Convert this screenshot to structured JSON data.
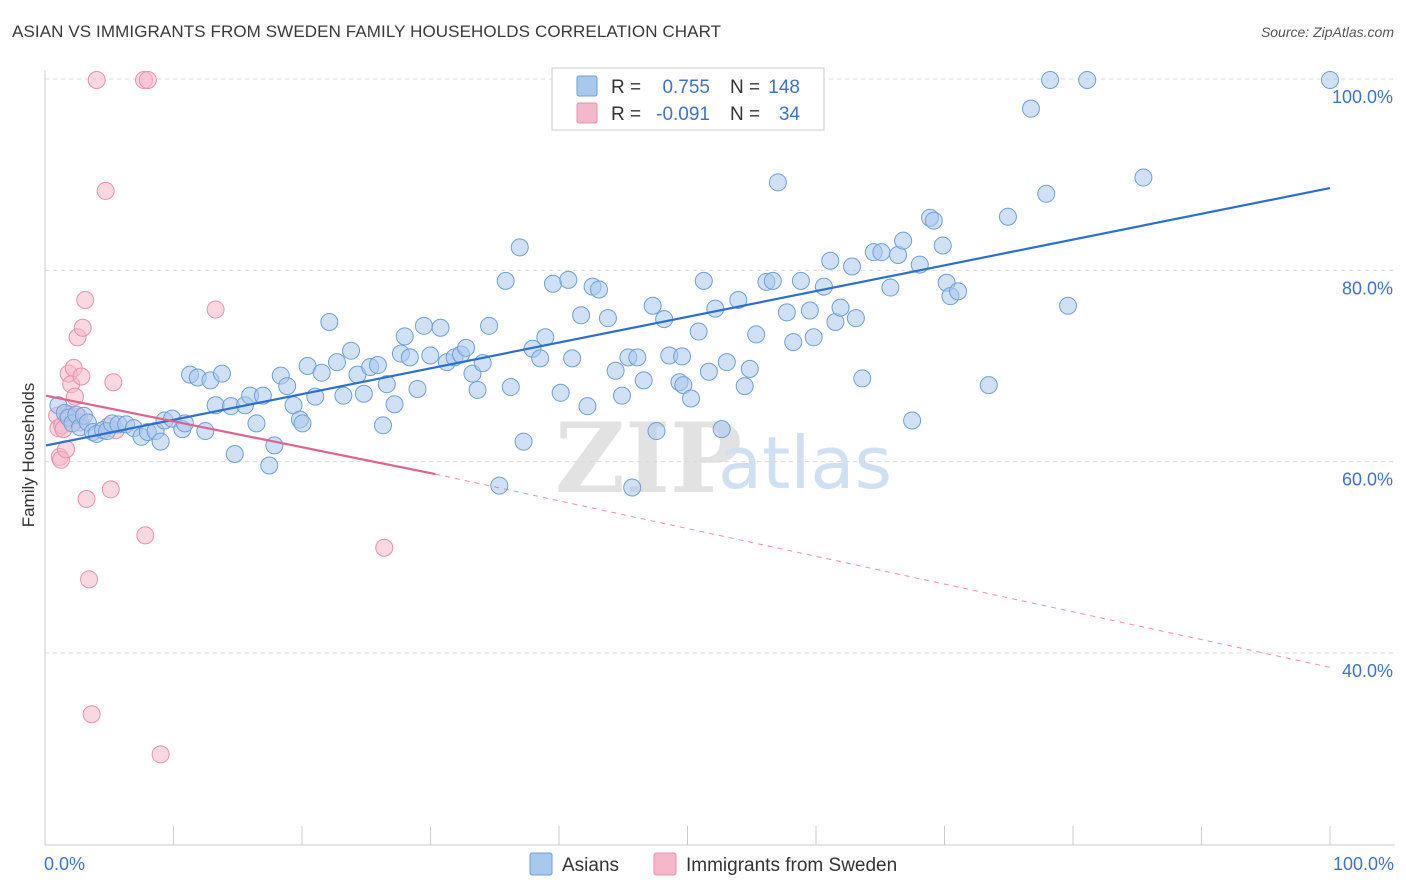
{
  "title": "ASIAN VS IMMIGRANTS FROM SWEDEN FAMILY HOUSEHOLDS CORRELATION CHART",
  "source": "Source: ZipAtlas.com",
  "watermark": {
    "zip": "ZIP",
    "atlas": "atlas"
  },
  "colors": {
    "asian_fill": "#a9c8ee",
    "asian_stroke": "#6f9fd8",
    "asian_line": "#2c6fce",
    "sweden_fill": "#f5b8cb",
    "sweden_stroke": "#e891ad",
    "sweden_line": "#e0628f",
    "tick_text": "#3f73c9",
    "grid": "#d9d9d9"
  },
  "legend": {
    "rows": [
      {
        "r_label": "R =",
        "r_value": "0.755",
        "n_label": "N =",
        "n_value": "148"
      },
      {
        "r_label": "R =",
        "r_value": "-0.091",
        "n_label": "N =",
        "n_value": "34"
      }
    ]
  },
  "bottom_legend": [
    "Asians",
    "Immigrants from Sweden"
  ],
  "chart_data": {
    "type": "scatter",
    "title": "ASIAN VS IMMIGRANTS FROM SWEDEN FAMILY HOUSEHOLDS CORRELATION CHART",
    "xlabel": "",
    "ylabel": "Family Households",
    "x_tick_labels": [
      "0.0%",
      "100.0%"
    ],
    "y_tick_labels": [
      "40.0%",
      "60.0%",
      "80.0%",
      "100.0%"
    ],
    "y_ticks": [
      40,
      60,
      80,
      100
    ],
    "xlim": [
      0,
      100
    ],
    "ylim": [
      21,
      101.5
    ],
    "grid": true,
    "legend_position": "top-center",
    "series": [
      {
        "name": "Asians",
        "trend": {
          "x": [
            0,
            100
          ],
          "y": [
            61.7,
            88.6
          ]
        },
        "points": [
          [
            0.5,
            65.9
          ],
          [
            1.0,
            65.1
          ],
          [
            1.3,
            64.6
          ],
          [
            1.6,
            64.0
          ],
          [
            1.9,
            64.9
          ],
          [
            2.2,
            63.6
          ],
          [
            2.5,
            64.8
          ],
          [
            2.8,
            64.1
          ],
          [
            3.2,
            63.1
          ],
          [
            3.5,
            62.9
          ],
          [
            4.0,
            63.3
          ],
          [
            4.3,
            63.2
          ],
          [
            4.7,
            64.0
          ],
          [
            5.2,
            63.9
          ],
          [
            5.8,
            63.9
          ],
          [
            6.4,
            63.5
          ],
          [
            7.0,
            62.6
          ],
          [
            7.5,
            63.1
          ],
          [
            8.1,
            63.2
          ],
          [
            8.5,
            62.1
          ],
          [
            8.8,
            64.3
          ],
          [
            9.4,
            64.5
          ],
          [
            10.2,
            63.4
          ],
          [
            10.4,
            64.0
          ],
          [
            10.8,
            69.1
          ],
          [
            11.4,
            68.8
          ],
          [
            12.0,
            63.2
          ],
          [
            12.4,
            68.5
          ],
          [
            12.8,
            65.9
          ],
          [
            13.3,
            69.2
          ],
          [
            14.0,
            65.8
          ],
          [
            14.3,
            60.8
          ],
          [
            15.1,
            65.9
          ],
          [
            15.5,
            66.9
          ],
          [
            16.0,
            64.0
          ],
          [
            16.5,
            66.9
          ],
          [
            17.0,
            59.6
          ],
          [
            17.4,
            61.7
          ],
          [
            17.9,
            69.0
          ],
          [
            18.4,
            67.9
          ],
          [
            18.9,
            65.9
          ],
          [
            19.4,
            64.4
          ],
          [
            19.6,
            64.0
          ],
          [
            20.0,
            70.0
          ],
          [
            20.6,
            66.8
          ],
          [
            21.1,
            69.3
          ],
          [
            21.7,
            74.6
          ],
          [
            22.3,
            70.4
          ],
          [
            22.8,
            66.9
          ],
          [
            23.4,
            71.6
          ],
          [
            23.9,
            69.1
          ],
          [
            24.4,
            67.1
          ],
          [
            24.9,
            69.9
          ],
          [
            25.5,
            70.1
          ],
          [
            25.9,
            63.8
          ],
          [
            26.2,
            68.1
          ],
          [
            26.8,
            66.0
          ],
          [
            27.3,
            71.3
          ],
          [
            27.6,
            73.1
          ],
          [
            28.0,
            70.9
          ],
          [
            28.6,
            67.6
          ],
          [
            29.1,
            74.2
          ],
          [
            29.6,
            71.1
          ],
          [
            30.4,
            74.0
          ],
          [
            30.9,
            70.4
          ],
          [
            31.5,
            70.9
          ],
          [
            32.0,
            71.2
          ],
          [
            32.4,
            71.9
          ],
          [
            32.9,
            69.2
          ],
          [
            33.3,
            67.5
          ],
          [
            33.7,
            70.3
          ],
          [
            34.2,
            74.2
          ],
          [
            35.0,
            57.5
          ],
          [
            35.5,
            78.9
          ],
          [
            35.9,
            67.8
          ],
          [
            36.6,
            82.4
          ],
          [
            36.9,
            62.1
          ],
          [
            37.6,
            71.8
          ],
          [
            38.2,
            70.8
          ],
          [
            38.6,
            73.0
          ],
          [
            39.2,
            78.6
          ],
          [
            39.8,
            67.2
          ],
          [
            40.4,
            79.0
          ],
          [
            40.7,
            70.8
          ],
          [
            41.4,
            75.3
          ],
          [
            41.9,
            65.8
          ],
          [
            42.3,
            78.3
          ],
          [
            42.8,
            78.0
          ],
          [
            43.5,
            75.0
          ],
          [
            44.1,
            69.5
          ],
          [
            44.6,
            66.9
          ],
          [
            45.1,
            70.9
          ],
          [
            45.4,
            57.3
          ],
          [
            45.8,
            70.9
          ],
          [
            46.3,
            68.5
          ],
          [
            47.0,
            76.3
          ],
          [
            47.3,
            63.2
          ],
          [
            47.9,
            74.9
          ],
          [
            48.3,
            71.1
          ],
          [
            49.1,
            68.3
          ],
          [
            49.4,
            68.0
          ],
          [
            50.0,
            66.6
          ],
          [
            50.6,
            73.6
          ],
          [
            51.0,
            78.9
          ],
          [
            51.4,
            69.4
          ],
          [
            51.9,
            76.0
          ],
          [
            52.4,
            63.4
          ],
          [
            52.8,
            70.4
          ],
          [
            53.7,
            76.9
          ],
          [
            54.2,
            67.9
          ],
          [
            54.6,
            69.7
          ],
          [
            55.1,
            73.3
          ],
          [
            55.9,
            78.8
          ],
          [
            56.4,
            78.9
          ],
          [
            56.8,
            89.2
          ],
          [
            57.5,
            75.6
          ],
          [
            58.0,
            72.5
          ],
          [
            58.6,
            78.9
          ],
          [
            59.3,
            75.8
          ],
          [
            59.6,
            73.0
          ],
          [
            60.4,
            78.3
          ],
          [
            60.9,
            81.0
          ],
          [
            61.3,
            74.6
          ],
          [
            61.7,
            76.1
          ],
          [
            62.6,
            80.4
          ],
          [
            62.9,
            75.0
          ],
          [
            63.4,
            68.7
          ],
          [
            64.3,
            81.9
          ],
          [
            64.9,
            81.9
          ],
          [
            65.6,
            78.2
          ],
          [
            66.2,
            81.6
          ],
          [
            66.6,
            83.1
          ],
          [
            67.3,
            64.3
          ],
          [
            67.9,
            80.6
          ],
          [
            68.7,
            85.5
          ],
          [
            69.0,
            85.2
          ],
          [
            69.7,
            82.6
          ],
          [
            70.0,
            78.7
          ],
          [
            70.3,
            77.3
          ],
          [
            70.9,
            77.8
          ],
          [
            73.3,
            68.0
          ],
          [
            74.8,
            85.6
          ],
          [
            76.6,
            96.9
          ],
          [
            77.8,
            88.0
          ],
          [
            78.1,
            99.9
          ],
          [
            79.5,
            76.3
          ],
          [
            81.0,
            99.9
          ],
          [
            85.4,
            89.7
          ],
          [
            100.0,
            99.9
          ],
          [
            49.3,
            71.0
          ]
        ]
      },
      {
        "name": "Immigrants from Sweden",
        "trend": {
          "x": [
            0,
            30
          ],
          "y": [
            66.9,
            58.7
          ],
          "dashed_to": {
            "x": 100,
            "y": 38.5
          }
        },
        "points": [
          [
            0.4,
            64.8
          ],
          [
            0.5,
            63.5
          ],
          [
            0.6,
            60.5
          ],
          [
            0.7,
            60.2
          ],
          [
            0.8,
            63.8
          ],
          [
            0.9,
            63.4
          ],
          [
            1.1,
            61.3
          ],
          [
            1.2,
            65.0
          ],
          [
            1.3,
            69.2
          ],
          [
            1.5,
            68.1
          ],
          [
            1.7,
            69.8
          ],
          [
            1.8,
            66.8
          ],
          [
            2.0,
            73.0
          ],
          [
            2.1,
            64.7
          ],
          [
            2.3,
            68.9
          ],
          [
            2.4,
            74.0
          ],
          [
            2.6,
            76.9
          ],
          [
            2.7,
            56.1
          ],
          [
            2.9,
            47.7
          ],
          [
            3.1,
            33.6
          ],
          [
            3.5,
            99.9
          ],
          [
            4.2,
            88.3
          ],
          [
            4.4,
            63.7
          ],
          [
            4.6,
            57.1
          ],
          [
            4.8,
            68.3
          ],
          [
            5.0,
            63.3
          ],
          [
            7.2,
            99.9
          ],
          [
            7.5,
            99.9
          ],
          [
            7.3,
            52.3
          ],
          [
            8.5,
            29.4
          ],
          [
            12.8,
            75.9
          ],
          [
            26.0,
            51.0
          ],
          [
            1.4,
            64.9
          ],
          [
            2.2,
            64.1
          ]
        ]
      }
    ]
  }
}
